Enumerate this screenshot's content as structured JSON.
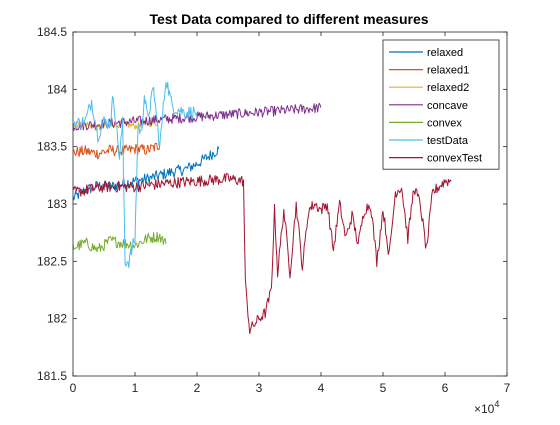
{
  "chart_data": {
    "type": "line",
    "title": "Test Data compared to different measures",
    "xlabel": "",
    "ylabel": "",
    "x_multiplier_label": "×10",
    "x_multiplier_exp": "4",
    "xlim": [
      0,
      70000
    ],
    "ylim": [
      181.5,
      184.5
    ],
    "xticks": [
      0,
      10000,
      20000,
      30000,
      40000,
      50000,
      60000,
      70000
    ],
    "xtick_labels": [
      "0",
      "1",
      "2",
      "3",
      "4",
      "5",
      "6",
      "7"
    ],
    "yticks": [
      181.5,
      182,
      182.5,
      183,
      183.5,
      184,
      184.5
    ],
    "ytick_labels": [
      "181.5",
      "182",
      "182.5",
      "183",
      "183.5",
      "184",
      "184.5"
    ],
    "grid": false,
    "legend_position": "top-right",
    "series": [
      {
        "name": "relaxed",
        "color": "#0072BD",
        "x": [
          0,
          2000,
          4000,
          6000,
          8000,
          10000,
          12000,
          14000,
          16000,
          18000,
          20000,
          22000,
          23500
        ],
        "y": [
          183.05,
          183.12,
          183.16,
          183.15,
          183.18,
          183.2,
          183.22,
          183.25,
          183.28,
          183.3,
          183.35,
          183.42,
          183.48
        ]
      },
      {
        "name": "relaxed1",
        "color": "#D95319",
        "x": [
          0,
          2000,
          4000,
          6000,
          8000,
          10000,
          12000,
          13500,
          14000
        ],
        "y": [
          183.45,
          183.46,
          183.44,
          183.47,
          183.46,
          183.48,
          183.47,
          183.5,
          183.52
        ]
      },
      {
        "name": "relaxed2",
        "color": "#EDB120",
        "x": [
          0,
          2000,
          4000,
          6000,
          8000,
          10000,
          12000,
          14000
        ],
        "y": [
          183.68,
          183.7,
          183.66,
          183.69,
          183.7,
          183.68,
          183.7,
          183.71
        ]
      },
      {
        "name": "concave",
        "color": "#7E2F8E",
        "x": [
          0,
          5000,
          10000,
          15000,
          20000,
          25000,
          30000,
          35000,
          40000
        ],
        "y": [
          183.68,
          183.7,
          183.72,
          183.74,
          183.76,
          183.78,
          183.8,
          183.82,
          183.84
        ]
      },
      {
        "name": "convex",
        "color": "#77AC30",
        "x": [
          0,
          2000,
          4000,
          6000,
          8000,
          10000,
          12000,
          14000,
          15000
        ],
        "y": [
          182.62,
          182.66,
          182.6,
          182.68,
          182.66,
          182.64,
          182.7,
          182.72,
          182.65
        ]
      },
      {
        "name": "testData",
        "color": "#4DBEEE",
        "x": [
          0,
          2000,
          3000,
          4000,
          5000,
          6000,
          6500,
          7500,
          8000,
          8400,
          9000,
          10000,
          10500,
          11000,
          11500,
          12000,
          13000,
          14000,
          15000,
          16000,
          18000,
          20000
        ],
        "y": [
          183.7,
          183.72,
          183.9,
          183.6,
          183.72,
          183.7,
          183.95,
          183.4,
          183.7,
          182.5,
          182.5,
          182.7,
          183.7,
          183.6,
          183.95,
          183.75,
          184.0,
          183.5,
          184.1,
          183.85,
          183.8,
          183.8
        ]
      },
      {
        "name": "convexTest",
        "color": "#A2142F",
        "x": [
          0,
          5000,
          10000,
          15000,
          20000,
          25000,
          27500,
          27800,
          28500,
          30000,
          31000,
          32000,
          32500,
          33000,
          34000,
          35000,
          36000,
          37000,
          38000,
          39000,
          40000,
          41000,
          42000,
          43000,
          44000,
          45000,
          46000,
          47000,
          48000,
          49000,
          50000,
          51000,
          52000,
          53000,
          54000,
          55000,
          56000,
          57000,
          58000,
          59000,
          60000,
          61000
        ],
        "y": [
          183.1,
          183.15,
          183.15,
          183.18,
          183.2,
          183.22,
          183.2,
          182.3,
          181.9,
          182.0,
          182.05,
          182.25,
          182.95,
          182.4,
          182.95,
          182.4,
          183.0,
          182.45,
          182.95,
          183.0,
          182.95,
          183.0,
          182.6,
          183.0,
          182.7,
          182.9,
          182.65,
          182.95,
          183.0,
          182.5,
          182.95,
          182.55,
          183.1,
          183.15,
          182.7,
          183.15,
          183.0,
          182.6,
          183.1,
          183.15,
          183.2,
          183.2
        ]
      }
    ]
  }
}
